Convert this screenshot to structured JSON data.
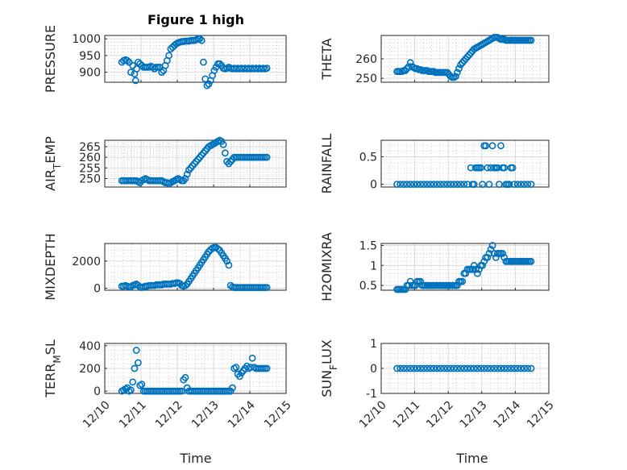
{
  "figure_title": "Figure 1 high",
  "colors": {
    "marker": "#0072BD",
    "axes": "#262626",
    "grid": "#d9d9d9"
  },
  "chart_data": [
    {
      "type": "scatter",
      "ylabel": "PRESSURE",
      "ylabel_sub": null,
      "xlim": [
        0,
        5
      ],
      "ylim": [
        870,
        1010
      ],
      "yticks": [
        900,
        950,
        1000
      ],
      "x": [
        0.47,
        0.52,
        0.57,
        0.62,
        0.67,
        0.72,
        0.77,
        0.82,
        0.85,
        0.88,
        0.92,
        0.97,
        1.02,
        1.07,
        1.12,
        1.17,
        1.22,
        1.27,
        1.32,
        1.37,
        1.42,
        1.47,
        1.52,
        1.57,
        1.62,
        1.67,
        1.72,
        1.77,
        1.82,
        1.87,
        1.92,
        1.97,
        2.02,
        2.07,
        2.12,
        2.17,
        2.22,
        2.27,
        2.32,
        2.37,
        2.42,
        2.47,
        2.52,
        2.57,
        2.62,
        2.67,
        2.72,
        2.77,
        2.82,
        2.87,
        2.92,
        2.97,
        3.02,
        3.07,
        3.12,
        3.17,
        3.22,
        3.27,
        3.32,
        3.37,
        3.42,
        3.47,
        3.52,
        3.57,
        3.62,
        3.67,
        3.72,
        3.77,
        3.82,
        3.87,
        3.92,
        3.97,
        4.02,
        4.07,
        4.12,
        4.17,
        4.22,
        4.27,
        4.32,
        4.37,
        4.42,
        4.47
      ],
      "y": [
        930,
        935,
        937,
        935,
        930,
        900,
        920,
        895,
        875,
        910,
        930,
        925,
        920,
        915,
        915,
        915,
        915,
        918,
        915,
        910,
        915,
        915,
        915,
        900,
        905,
        920,
        935,
        950,
        970,
        975,
        980,
        985,
        988,
        990,
        992,
        992,
        993,
        993,
        993,
        995,
        995,
        995,
        997,
        1000,
        1000,
        995,
        930,
        880,
        860,
        865,
        875,
        890,
        905,
        915,
        925,
        925,
        920,
        912,
        910,
        912,
        915,
        912,
        910,
        912,
        910,
        912,
        910,
        912,
        910,
        912,
        910,
        912,
        910,
        912,
        910,
        912,
        910,
        912,
        910,
        912,
        910,
        912
      ],
      "y_note": "values approximate"
    },
    {
      "type": "scatter",
      "ylabel": "THETA",
      "ylabel_sub": null,
      "xlim": [
        0,
        5
      ],
      "ylim": [
        248,
        272
      ],
      "yticks": [
        250,
        260
      ],
      "x": [
        0.47,
        0.52,
        0.57,
        0.62,
        0.67,
        0.72,
        0.77,
        0.82,
        0.87,
        0.92,
        0.97,
        1.02,
        1.07,
        1.12,
        1.17,
        1.22,
        1.27,
        1.32,
        1.37,
        1.42,
        1.47,
        1.52,
        1.57,
        1.62,
        1.67,
        1.72,
        1.77,
        1.82,
        1.87,
        1.92,
        1.97,
        2.02,
        2.07,
        2.12,
        2.17,
        2.22,
        2.27,
        2.32,
        2.37,
        2.42,
        2.47,
        2.52,
        2.57,
        2.62,
        2.67,
        2.72,
        2.77,
        2.82,
        2.87,
        2.92,
        2.97,
        3.02,
        3.07,
        3.12,
        3.17,
        3.22,
        3.27,
        3.32,
        3.37,
        3.42,
        3.47,
        3.52,
        3.57,
        3.62,
        3.67,
        3.72,
        3.77,
        3.82,
        3.87,
        3.92,
        3.97,
        4.02,
        4.07,
        4.12,
        4.17,
        4.22,
        4.27,
        4.32,
        4.37,
        4.42,
        4.47
      ],
      "y": [
        253.5,
        253.5,
        253.5,
        253.5,
        254,
        254,
        255,
        256,
        258,
        256,
        255.5,
        255,
        255,
        254.5,
        254.5,
        254,
        254,
        254,
        254,
        253.5,
        253.5,
        253.5,
        253.5,
        253,
        253,
        253,
        253,
        253,
        253,
        253,
        253,
        252,
        251,
        250.5,
        250.5,
        251,
        253,
        255,
        257,
        258,
        259,
        260,
        261,
        262,
        263,
        264,
        265,
        265.5,
        266,
        266.5,
        267,
        267.5,
        268,
        268.5,
        269,
        269.5,
        270,
        270.5,
        271,
        271,
        271,
        270.5,
        270,
        270,
        270,
        269.5,
        269.5,
        269.5,
        269.5,
        269.5,
        269.5,
        269.5,
        269.5,
        269.5,
        269.5,
        269.5,
        269.5,
        269.5,
        269.5,
        269.5,
        269.5
      ],
      "y_note": "values approximate"
    },
    {
      "type": "scatter",
      "ylabel": "AIR",
      "ylabel_sub": "T",
      "ylabel_rest": "EMP",
      "xlim": [
        0,
        5
      ],
      "ylim": [
        246,
        268
      ],
      "yticks": [
        250,
        255,
        260,
        265
      ],
      "x": [
        0.47,
        0.52,
        0.57,
        0.62,
        0.67,
        0.72,
        0.77,
        0.82,
        0.87,
        0.92,
        0.97,
        1.02,
        1.07,
        1.12,
        1.17,
        1.22,
        1.27,
        1.32,
        1.37,
        1.42,
        1.47,
        1.52,
        1.57,
        1.62,
        1.67,
        1.72,
        1.77,
        1.82,
        1.87,
        1.92,
        1.97,
        2.02,
        2.07,
        2.12,
        2.17,
        2.22,
        2.27,
        2.32,
        2.37,
        2.42,
        2.47,
        2.52,
        2.57,
        2.62,
        2.67,
        2.72,
        2.77,
        2.82,
        2.87,
        2.92,
        2.97,
        3.02,
        3.07,
        3.12,
        3.17,
        3.22,
        3.27,
        3.32,
        3.37,
        3.42,
        3.47,
        3.52,
        3.57,
        3.62,
        3.67,
        3.72,
        3.77,
        3.82,
        3.87,
        3.92,
        3.97,
        4.02,
        4.07,
        4.12,
        4.17,
        4.22,
        4.27,
        4.32,
        4.37,
        4.42,
        4.47
      ],
      "y": [
        249,
        249,
        249,
        249,
        249,
        249,
        249,
        249,
        249,
        248.5,
        248,
        249,
        249.5,
        250,
        249.5,
        249,
        249,
        249,
        249,
        249,
        249,
        249,
        249,
        248.5,
        248,
        248,
        247.5,
        248,
        248.5,
        249,
        249.5,
        250,
        249.5,
        249,
        249,
        250,
        252,
        254,
        255,
        256,
        257,
        258,
        259,
        260,
        261,
        262,
        263,
        264,
        265,
        265.5,
        266,
        266.5,
        267,
        267.5,
        268,
        267.5,
        266,
        262,
        258,
        257,
        258,
        259,
        260,
        260,
        260,
        260,
        260,
        260,
        260,
        260,
        260,
        260,
        260,
        260,
        260,
        260,
        260,
        260,
        260,
        260,
        260
      ],
      "y_note": "values approximate"
    },
    {
      "type": "scatter",
      "ylabel": "RAINFALL",
      "ylabel_sub": null,
      "xlim": [
        0,
        5
      ],
      "ylim": [
        -0.05,
        0.8
      ],
      "yticks": [
        0,
        0.5
      ],
      "x": [
        0.47,
        0.57,
        0.67,
        0.77,
        0.87,
        0.97,
        1.07,
        1.17,
        1.27,
        1.37,
        1.47,
        1.57,
        1.67,
        1.77,
        1.87,
        1.97,
        2.07,
        2.17,
        2.27,
        2.37,
        2.47,
        2.57,
        2.67,
        2.72,
        2.77,
        2.82,
        2.87,
        2.92,
        2.97,
        3.02,
        3.07,
        3.12,
        3.17,
        3.22,
        3.27,
        3.32,
        3.37,
        3.42,
        3.47,
        3.52,
        3.57,
        3.62,
        3.67,
        3.72,
        3.77,
        3.82,
        3.87,
        3.92,
        3.97,
        4.07,
        4.17,
        4.27,
        4.37,
        4.47
      ],
      "y": [
        0,
        0,
        0,
        0,
        0,
        0,
        0,
        0,
        0,
        0,
        0,
        0,
        0,
        0,
        0,
        0,
        0,
        0,
        0,
        0,
        0,
        0,
        0.3,
        0,
        0,
        0.3,
        0.3,
        0.3,
        0.3,
        0,
        0.7,
        0.7,
        0.3,
        0,
        0.3,
        0.7,
        0.3,
        0.3,
        0.3,
        0,
        0.7,
        0.3,
        0.3,
        0,
        0,
        0,
        0.3,
        0.3,
        0,
        0,
        0,
        0,
        0,
        0
      ],
      "y_note": "values approximate"
    },
    {
      "type": "scatter",
      "ylabel": "MIXDEPTH",
      "ylabel_sub": null,
      "xlim": [
        0,
        5
      ],
      "ylim": [
        -150,
        3300
      ],
      "yticks": [
        0,
        2000
      ],
      "x": [
        0.47,
        0.52,
        0.57,
        0.62,
        0.67,
        0.72,
        0.77,
        0.82,
        0.87,
        0.92,
        0.97,
        1.02,
        1.07,
        1.12,
        1.17,
        1.22,
        1.27,
        1.32,
        1.37,
        1.42,
        1.47,
        1.52,
        1.57,
        1.62,
        1.67,
        1.72,
        1.77,
        1.82,
        1.87,
        1.92,
        1.97,
        2.02,
        2.07,
        2.12,
        2.17,
        2.22,
        2.27,
        2.32,
        2.37,
        2.42,
        2.47,
        2.52,
        2.57,
        2.62,
        2.67,
        2.72,
        2.77,
        2.82,
        2.87,
        2.92,
        2.97,
        3.02,
        3.07,
        3.12,
        3.17,
        3.22,
        3.27,
        3.32,
        3.37,
        3.42,
        3.47,
        3.52,
        3.57,
        3.62,
        3.67,
        3.72,
        3.77,
        3.82,
        3.87,
        3.92,
        3.97,
        4.02,
        4.07,
        4.12,
        4.17,
        4.22,
        4.27,
        4.32,
        4.37,
        4.42,
        4.47
      ],
      "y": [
        150,
        150,
        200,
        150,
        100,
        100,
        200,
        250,
        300,
        200,
        100,
        50,
        100,
        150,
        150,
        200,
        200,
        200,
        200,
        250,
        250,
        250,
        250,
        300,
        300,
        300,
        300,
        300,
        350,
        350,
        400,
        400,
        350,
        200,
        150,
        200,
        300,
        500,
        700,
        900,
        1100,
        1300,
        1500,
        1700,
        1900,
        2100,
        2300,
        2500,
        2700,
        2850,
        2950,
        3000,
        3000,
        2900,
        2800,
        2600,
        2400,
        2200,
        2000,
        1700,
        200,
        100,
        50,
        50,
        50,
        50,
        50,
        50,
        50,
        50,
        50,
        50,
        50,
        50,
        50,
        50,
        50,
        50,
        50,
        50,
        50
      ],
      "y_note": "values approximate"
    },
    {
      "type": "scatter",
      "ylabel": "H2OMIXRA",
      "ylabel_sub": null,
      "xlim": [
        0,
        5
      ],
      "ylim": [
        0.38,
        1.55
      ],
      "yticks": [
        0.5,
        1,
        1.5
      ],
      "x": [
        0.47,
        0.52,
        0.57,
        0.62,
        0.67,
        0.72,
        0.77,
        0.82,
        0.87,
        0.92,
        0.97,
        1.02,
        1.07,
        1.12,
        1.17,
        1.22,
        1.27,
        1.32,
        1.37,
        1.42,
        1.47,
        1.52,
        1.57,
        1.62,
        1.67,
        1.72,
        1.77,
        1.82,
        1.87,
        1.92,
        1.97,
        2.02,
        2.07,
        2.12,
        2.17,
        2.22,
        2.27,
        2.32,
        2.37,
        2.42,
        2.47,
        2.52,
        2.57,
        2.62,
        2.67,
        2.72,
        2.77,
        2.82,
        2.87,
        2.92,
        2.97,
        3.02,
        3.07,
        3.12,
        3.17,
        3.22,
        3.27,
        3.32,
        3.37,
        3.42,
        3.47,
        3.52,
        3.57,
        3.62,
        3.67,
        3.72,
        3.77,
        3.82,
        3.87,
        3.92,
        3.97,
        4.02,
        4.07,
        4.12,
        4.17,
        4.22,
        4.27,
        4.32,
        4.37,
        4.42,
        4.47
      ],
      "y": [
        0.4,
        0.4,
        0.4,
        0.4,
        0.4,
        0.4,
        0.5,
        0.5,
        0.6,
        0.5,
        0.5,
        0.5,
        0.6,
        0.6,
        0.6,
        0.5,
        0.5,
        0.5,
        0.5,
        0.5,
        0.5,
        0.5,
        0.5,
        0.5,
        0.5,
        0.5,
        0.5,
        0.5,
        0.5,
        0.5,
        0.5,
        0.5,
        0.5,
        0.5,
        0.5,
        0.5,
        0.5,
        0.6,
        0.6,
        0.6,
        0.8,
        0.8,
        0.9,
        0.9,
        0.9,
        0.9,
        1.0,
        0.9,
        0.8,
        0.9,
        1.0,
        1.0,
        1.1,
        1.2,
        1.2,
        1.3,
        1.4,
        1.5,
        1.3,
        1.2,
        1.3,
        1.3,
        1.3,
        1.3,
        1.2,
        1.1,
        1.1,
        1.1,
        1.1,
        1.1,
        1.1,
        1.1,
        1.1,
        1.1,
        1.1,
        1.1,
        1.1,
        1.1,
        1.1,
        1.1,
        1.1
      ],
      "y_note": "values approximate"
    },
    {
      "type": "scatter",
      "ylabel": "TERR",
      "ylabel_sub": "M",
      "ylabel_rest": "SL",
      "xlim": [
        0,
        5
      ],
      "ylim": [
        -20,
        420
      ],
      "yticks": [
        0,
        200,
        400
      ],
      "x": [
        0.47,
        0.52,
        0.57,
        0.62,
        0.67,
        0.72,
        0.77,
        0.82,
        0.87,
        0.92,
        0.97,
        1.02,
        1.07,
        1.12,
        1.17,
        1.22,
        1.27,
        1.32,
        1.37,
        1.42,
        1.47,
        1.52,
        1.57,
        1.62,
        1.67,
        1.72,
        1.77,
        1.82,
        1.87,
        1.92,
        1.97,
        2.02,
        2.07,
        2.12,
        2.17,
        2.22,
        2.27,
        2.32,
        2.37,
        2.42,
        2.47,
        2.52,
        2.57,
        2.62,
        2.67,
        2.72,
        2.77,
        2.82,
        2.87,
        2.92,
        2.97,
        3.02,
        3.07,
        3.12,
        3.17,
        3.22,
        3.27,
        3.32,
        3.37,
        3.42,
        3.47,
        3.52,
        3.57,
        3.62,
        3.67,
        3.72,
        3.77,
        3.82,
        3.87,
        3.92,
        3.97,
        4.02,
        4.07,
        4.12,
        4.17,
        4.22,
        4.27,
        4.32,
        4.37,
        4.42,
        4.47
      ],
      "y": [
        0,
        10,
        20,
        30,
        0,
        10,
        80,
        200,
        360,
        250,
        50,
        60,
        0,
        0,
        0,
        0,
        0,
        0,
        0,
        0,
        0,
        0,
        0,
        0,
        0,
        0,
        0,
        0,
        0,
        0,
        0,
        0,
        0,
        0,
        100,
        120,
        30,
        0,
        0,
        0,
        0,
        0,
        0,
        0,
        0,
        0,
        0,
        0,
        0,
        0,
        0,
        0,
        0,
        0,
        0,
        0,
        0,
        0,
        0,
        0,
        0,
        30,
        200,
        210,
        150,
        130,
        160,
        180,
        200,
        220,
        200,
        210,
        290,
        210,
        200,
        200,
        200,
        200,
        200,
        200,
        200
      ],
      "y_note": "values approximate"
    },
    {
      "type": "scatter",
      "ylabel": "SUN",
      "ylabel_sub": "F",
      "ylabel_rest": "LUX",
      "xlim": [
        0,
        5
      ],
      "ylim": [
        -1,
        1
      ],
      "yticks": [
        -1,
        0,
        1
      ],
      "x": [
        0.47,
        0.57,
        0.67,
        0.77,
        0.87,
        0.97,
        1.07,
        1.17,
        1.27,
        1.37,
        1.47,
        1.57,
        1.67,
        1.77,
        1.87,
        1.97,
        2.07,
        2.17,
        2.27,
        2.37,
        2.47,
        2.57,
        2.67,
        2.77,
        2.87,
        2.97,
        3.07,
        3.17,
        3.27,
        3.37,
        3.47,
        3.57,
        3.67,
        3.77,
        3.87,
        3.97,
        4.07,
        4.17,
        4.27,
        4.37,
        4.47
      ],
      "y": [
        0,
        0,
        0,
        0,
        0,
        0,
        0,
        0,
        0,
        0,
        0,
        0,
        0,
        0,
        0,
        0,
        0,
        0,
        0,
        0,
        0,
        0,
        0,
        0,
        0,
        0,
        0,
        0,
        0,
        0,
        0,
        0,
        0,
        0,
        0,
        0,
        0,
        0,
        0,
        0,
        0
      ],
      "y_note": "values approximate"
    }
  ],
  "x_tick_labels": [
    "12/10",
    "12/11",
    "12/12",
    "12/13",
    "12/14",
    "12/15"
  ],
  "xlabel": "Time"
}
